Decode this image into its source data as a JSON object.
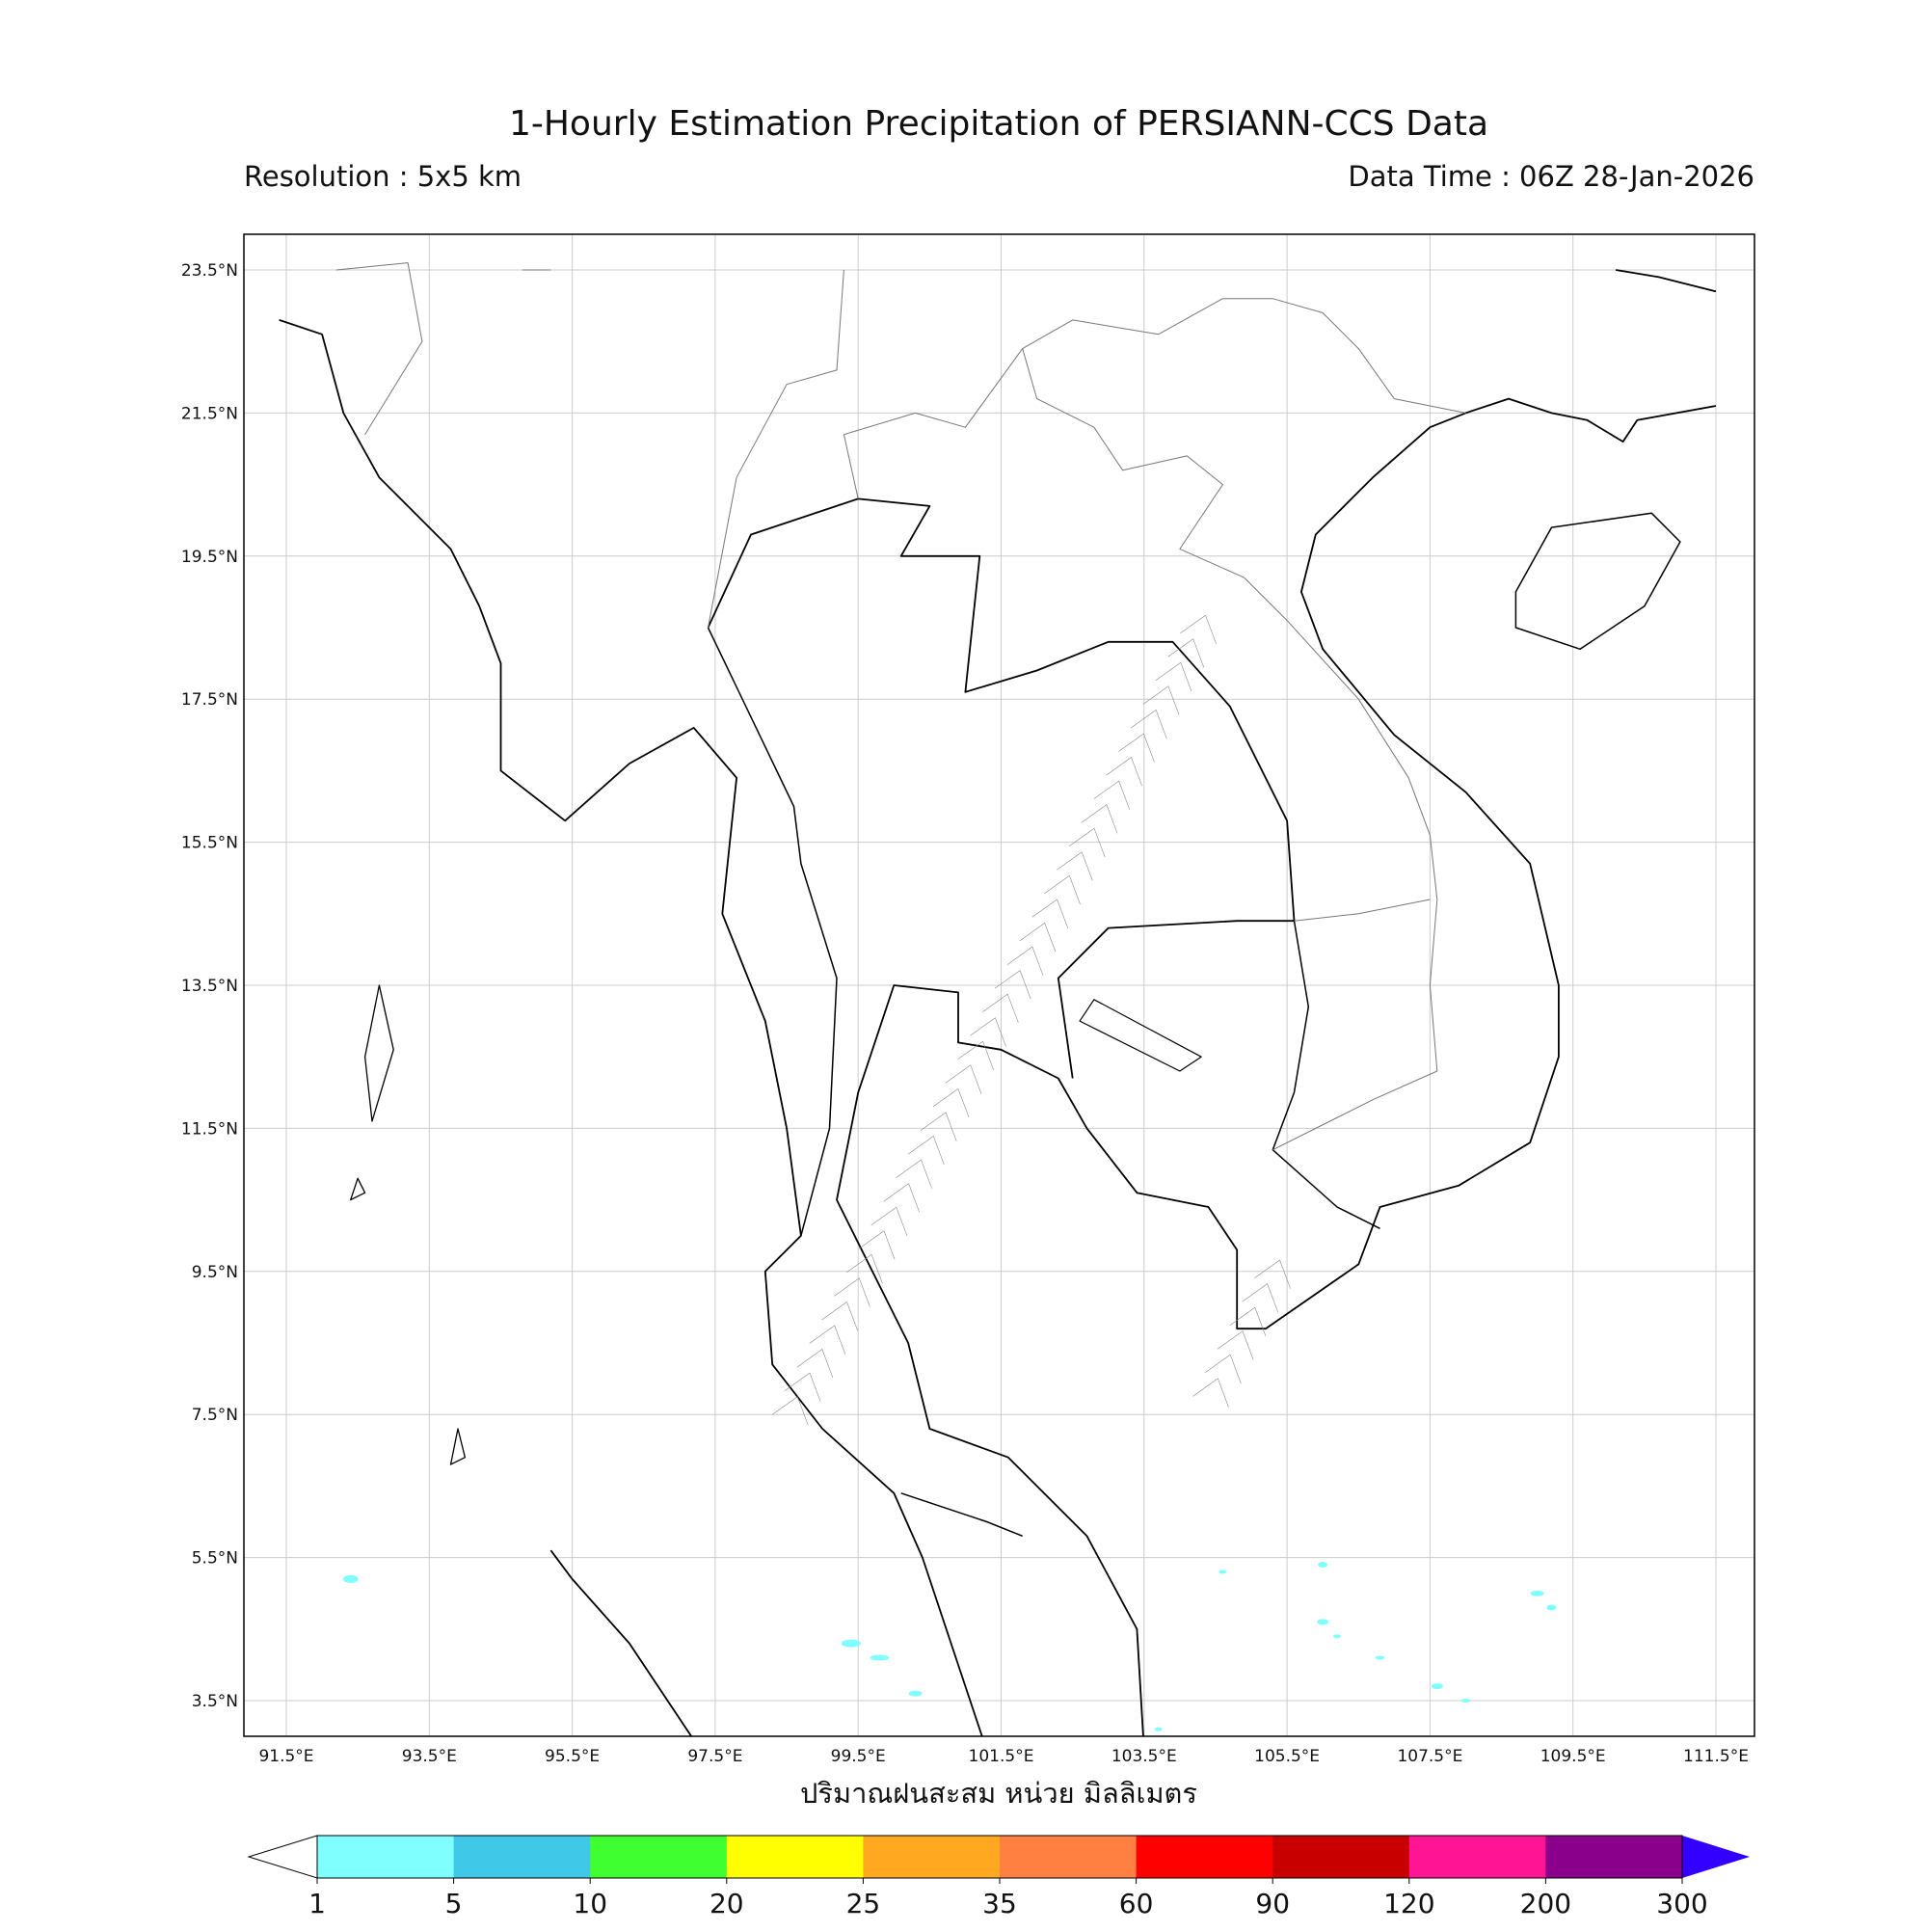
{
  "title": "1-Hourly Estimation Precipitation of PERSIANN-CCS Data",
  "resolution": "Resolution : 5x5 km",
  "data_time": "Data Time : 06Z 28-Jan-2026",
  "map": {
    "lat_ticks": [
      "23.5°N",
      "21.5°N",
      "19.5°N",
      "17.5°N",
      "15.5°N",
      "13.5°N",
      "11.5°N",
      "9.5°N",
      "7.5°N",
      "5.5°N",
      "3.5°N"
    ],
    "lon_ticks": [
      "91.5°E",
      "93.5°E",
      "95.5°E",
      "97.5°E",
      "99.5°E",
      "101.5°E",
      "103.5°E",
      "105.5°E",
      "107.5°E",
      "109.5°E",
      "111.5°E"
    ],
    "xlabel": "ปริมาณฝนสะสม หน่วย มิลลิเมตร"
  },
  "colorbar": {
    "levels": [
      1,
      5,
      10,
      20,
      25,
      35,
      60,
      90,
      120,
      200,
      300
    ],
    "colors": [
      "#ffffff",
      "#80ffff",
      "#40c8e8",
      "#40ff30",
      "#ffff00",
      "#ffa820",
      "#ff8040",
      "#ff0000",
      "#c80000",
      "#ff1493",
      "#8b008b",
      "#3300ff"
    ]
  }
}
